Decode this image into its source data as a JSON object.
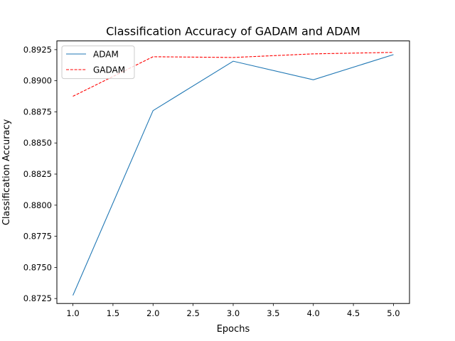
{
  "chart_data": {
    "type": "line",
    "title": "Classification Accuracy of GADAM and ADAM",
    "xlabel": "Epochs",
    "ylabel": "Classification Accuracy",
    "xlim": [
      0.8,
      5.2
    ],
    "ylim": [
      0.8721,
      0.8932
    ],
    "x_ticks": [
      "1.0",
      "1.5",
      "2.0",
      "2.5",
      "3.0",
      "3.5",
      "4.0",
      "4.5",
      "5.0"
    ],
    "y_ticks": [
      "0.8725",
      "0.8750",
      "0.8775",
      "0.8800",
      "0.8825",
      "0.8850",
      "0.8875",
      "0.8900",
      "0.8925"
    ],
    "grid": false,
    "legend_position": "top-left",
    "x": [
      1,
      2,
      3,
      4,
      5
    ],
    "series": [
      {
        "name": "ADAM",
        "values": [
          0.87275,
          0.8876,
          0.89157,
          0.89008,
          0.8921
        ],
        "color": "#1f77b4",
        "style": "solid"
      },
      {
        "name": "GADAM",
        "values": [
          0.88875,
          0.89193,
          0.89187,
          0.89216,
          0.89228
        ],
        "color": "#ff0000",
        "style": "dashed"
      }
    ]
  }
}
